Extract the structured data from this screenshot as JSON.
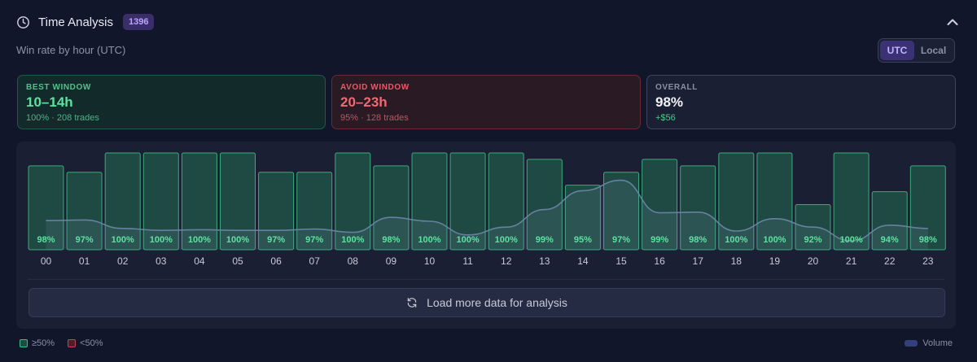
{
  "header": {
    "title": "Time Analysis",
    "badge": "1396",
    "subtitle": "Win rate by hour (UTC)"
  },
  "timezone_toggle": {
    "options": [
      "UTC",
      "Local"
    ],
    "selected": "UTC"
  },
  "cards": {
    "best": {
      "label": "BEST WINDOW",
      "value": "10–14h",
      "detail": "100% · 208 trades"
    },
    "avoid": {
      "label": "AVOID WINDOW",
      "value": "20–23h",
      "detail": "95% · 128 trades"
    },
    "overall": {
      "label": "OVERALL",
      "value": "98%",
      "detail": "+$56"
    }
  },
  "chart_data": {
    "type": "bar",
    "title": "Win rate by hour (UTC)",
    "categories": [
      "00",
      "01",
      "02",
      "03",
      "04",
      "05",
      "06",
      "07",
      "08",
      "09",
      "10",
      "11",
      "12",
      "13",
      "14",
      "15",
      "16",
      "17",
      "18",
      "19",
      "20",
      "21",
      "22",
      "23"
    ],
    "series": [
      {
        "name": "Win rate",
        "unit": "%",
        "values": [
          98,
          97,
          100,
          100,
          100,
          100,
          97,
          97,
          100,
          98,
          100,
          100,
          100,
          99,
          95,
          97,
          99,
          98,
          100,
          100,
          92,
          100,
          94,
          98
        ],
        "labels": [
          "98%",
          "97%",
          "100%",
          "100%",
          "100%",
          "100%",
          "97%",
          "97%",
          "100%",
          "98%",
          "100%",
          "100%",
          "100%",
          "99%",
          "95%",
          "97%",
          "99%",
          "98%",
          "100%",
          "100%",
          "92%",
          "100%",
          "94%",
          "98%"
        ]
      },
      {
        "name": "Volume",
        "unit": "relative",
        "values": [
          0.31,
          0.32,
          0.19,
          0.16,
          0.17,
          0.16,
          0.16,
          0.18,
          0.13,
          0.36,
          0.3,
          0.09,
          0.21,
          0.48,
          0.77,
          0.93,
          0.43,
          0.44,
          0.15,
          0.34,
          0.21,
          0.0,
          0.24,
          0.19
        ]
      }
    ],
    "ylim": [
      0,
      100
    ],
    "threshold_legend": [
      "≥50%",
      "<50%"
    ],
    "volume_legend": "Volume",
    "colors": {
      "win_fill": "#1f4a43",
      "win_stroke": "#3fbf86",
      "label": "#5ee0a0",
      "volume_line": "#6e86a8"
    }
  },
  "load_more": {
    "label": "Load more data for analysis"
  }
}
